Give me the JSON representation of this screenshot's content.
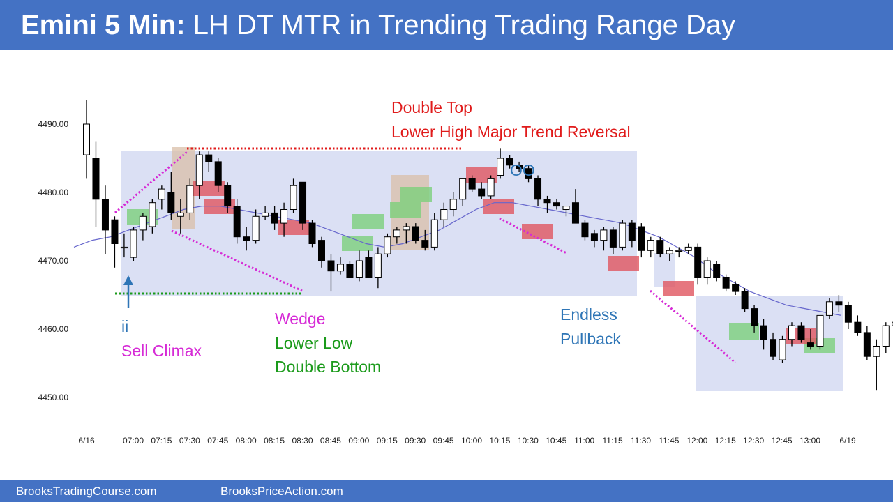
{
  "header": {
    "title_bold": "Emini 5 Min:",
    "title_rest": "LH DT MTR in Trending Trading Range Day"
  },
  "footer": {
    "site1": "BrooksTradingCourse.com",
    "site2": "BrooksPriceAction.com"
  },
  "colors": {
    "header_bg": "#4472c4",
    "bull_bar": "#ffffff",
    "bear_bar": "#000000",
    "ema": "#6666cc",
    "range_box": "#dbe0f4",
    "green_box": "#7ccf7c",
    "red_box": "#e0555f",
    "tan_box": "#d9bfa8",
    "magenta": "#d62ad6",
    "green_text": "#1a9a1a",
    "red_text": "#e01b1b",
    "blue_text": "#2e75b6"
  },
  "annotations": {
    "double_top": "Double Top",
    "lh_mtr": "Lower High Major Trend Reversal",
    "oo": "OO",
    "ii": "ii",
    "sell_climax": "Sell Climax",
    "wedge": "Wedge",
    "lower_low": "Lower Low",
    "double_bottom": "Double Bottom",
    "endless": "Endless",
    "pullback": "Pullback"
  },
  "chart_data": {
    "type": "candlestick",
    "y_ticks": [
      "4450.00",
      "4460.00",
      "4470.00",
      "4480.00",
      "4490.00"
    ],
    "x_ticks": [
      "6/16",
      "07:00",
      "07:15",
      "07:30",
      "07:45",
      "08:00",
      "08:15",
      "08:30",
      "08:45",
      "09:00",
      "09:15",
      "09:30",
      "09:45",
      "10:00",
      "10:15",
      "10:30",
      "10:45",
      "11:00",
      "11:15",
      "11:30",
      "11:45",
      "12:00",
      "12:15",
      "12:30",
      "12:45",
      "13:00",
      "6/19"
    ],
    "ylim": [
      4447,
      4496
    ],
    "grid": false,
    "candles": [
      {
        "o": 4485.5,
        "h": 4493.5,
        "l": 4482.0,
        "c": 4490.0
      },
      {
        "o": 4485.0,
        "h": 4487.5,
        "l": 4475.0,
        "c": 4479.0
      },
      {
        "o": 4479.0,
        "h": 4481.0,
        "l": 4471.0,
        "c": 4474.5
      },
      {
        "o": 4476.0,
        "h": 4476.5,
        "l": 4469.0,
        "c": 4472.5
      },
      {
        "o": 4472.0,
        "h": 4474.0,
        "l": 4470.5,
        "c": 4472.0
      },
      {
        "o": 4470.5,
        "h": 4475.0,
        "l": 4470.0,
        "c": 4474.5
      },
      {
        "o": 4474.5,
        "h": 4477.0,
        "l": 4473.0,
        "c": 4476.5
      },
      {
        "o": 4475.0,
        "h": 4479.0,
        "l": 4474.0,
        "c": 4478.5
      },
      {
        "o": 4479.0,
        "h": 4481.0,
        "l": 4477.5,
        "c": 4480.5
      },
      {
        "o": 4480.0,
        "h": 4483.0,
        "l": 4476.0,
        "c": 4477.0
      },
      {
        "o": 4476.5,
        "h": 4479.0,
        "l": 4474.0,
        "c": 4477.0
      },
      {
        "o": 4477.0,
        "h": 4482.0,
        "l": 4476.0,
        "c": 4481.0
      },
      {
        "o": 4481.0,
        "h": 4486.0,
        "l": 4479.0,
        "c": 4485.5
      },
      {
        "o": 4485.5,
        "h": 4486.0,
        "l": 4483.0,
        "c": 4484.5
      },
      {
        "o": 4484.5,
        "h": 4485.0,
        "l": 4480.0,
        "c": 4481.0
      },
      {
        "o": 4481.0,
        "h": 4481.5,
        "l": 4477.0,
        "c": 4478.0
      },
      {
        "o": 4478.0,
        "h": 4479.0,
        "l": 4472.5,
        "c": 4473.5
      },
      {
        "o": 4473.5,
        "h": 4475.0,
        "l": 4471.5,
        "c": 4473.0
      },
      {
        "o": 4473.0,
        "h": 4477.5,
        "l": 4472.5,
        "c": 4476.5
      },
      {
        "o": 4476.5,
        "h": 4478.0,
        "l": 4476.0,
        "c": 4477.0
      },
      {
        "o": 4477.0,
        "h": 4478.0,
        "l": 4474.5,
        "c": 4475.5
      },
      {
        "o": 4475.5,
        "h": 4478.5,
        "l": 4473.5,
        "c": 4477.5
      },
      {
        "o": 4477.5,
        "h": 4482.0,
        "l": 4477.0,
        "c": 4481.0
      },
      {
        "o": 4481.5,
        "h": 4481.5,
        "l": 4474.5,
        "c": 4475.5
      },
      {
        "o": 4475.5,
        "h": 4476.0,
        "l": 4472.0,
        "c": 4472.5
      },
      {
        "o": 4473.0,
        "h": 4473.5,
        "l": 4469.0,
        "c": 4470.0
      },
      {
        "o": 4470.0,
        "h": 4471.0,
        "l": 4465.5,
        "c": 4468.5
      },
      {
        "o": 4468.5,
        "h": 4470.5,
        "l": 4468.0,
        "c": 4469.5
      },
      {
        "o": 4469.5,
        "h": 4470.0,
        "l": 4467.5,
        "c": 4467.5
      },
      {
        "o": 4467.5,
        "h": 4471.5,
        "l": 4467.0,
        "c": 4470.0
      },
      {
        "o": 4470.5,
        "h": 4471.5,
        "l": 4467.5,
        "c": 4467.5
      },
      {
        "o": 4467.5,
        "h": 4472.0,
        "l": 4466.0,
        "c": 4471.0
      },
      {
        "o": 4471.0,
        "h": 4474.0,
        "l": 4470.5,
        "c": 4473.5
      },
      {
        "o": 4473.5,
        "h": 4475.0,
        "l": 4472.5,
        "c": 4474.5
      },
      {
        "o": 4474.5,
        "h": 4475.5,
        "l": 4472.5,
        "c": 4475.0
      },
      {
        "o": 4475.0,
        "h": 4475.5,
        "l": 4472.5,
        "c": 4473.0
      },
      {
        "o": 4473.0,
        "h": 4474.5,
        "l": 4471.5,
        "c": 4472.0
      },
      {
        "o": 4472.0,
        "h": 4477.0,
        "l": 4471.5,
        "c": 4476.0
      },
      {
        "o": 4476.0,
        "h": 4478.5,
        "l": 4475.0,
        "c": 4477.5
      },
      {
        "o": 4477.5,
        "h": 4480.0,
        "l": 4476.5,
        "c": 4479.0
      },
      {
        "o": 4479.0,
        "h": 4482.0,
        "l": 4478.0,
        "c": 4482.0
      },
      {
        "o": 4482.0,
        "h": 4482.5,
        "l": 4480.0,
        "c": 4480.5
      },
      {
        "o": 4480.5,
        "h": 4481.5,
        "l": 4479.0,
        "c": 4479.5
      },
      {
        "o": 4479.5,
        "h": 4482.5,
        "l": 4479.0,
        "c": 4482.0
      },
      {
        "o": 4482.5,
        "h": 4486.5,
        "l": 4482.0,
        "c": 4485.0
      },
      {
        "o": 4485.0,
        "h": 4485.5,
        "l": 4483.5,
        "c": 4484.0
      },
      {
        "o": 4484.0,
        "h": 4484.5,
        "l": 4483.0,
        "c": 4483.5
      },
      {
        "o": 4483.5,
        "h": 4484.0,
        "l": 4481.5,
        "c": 4482.0
      },
      {
        "o": 4482.0,
        "h": 4482.5,
        "l": 4478.0,
        "c": 4479.0
      },
      {
        "o": 4479.0,
        "h": 4479.5,
        "l": 4477.0,
        "c": 4478.5
      },
      {
        "o": 4478.5,
        "h": 4479.0,
        "l": 4477.5,
        "c": 4478.0
      },
      {
        "o": 4477.5,
        "h": 4478.0,
        "l": 4476.5,
        "c": 4478.0
      },
      {
        "o": 4478.5,
        "h": 4480.5,
        "l": 4475.5,
        "c": 4475.5
      },
      {
        "o": 4475.5,
        "h": 4476.0,
        "l": 4473.0,
        "c": 4473.5
      },
      {
        "o": 4474.0,
        "h": 4474.5,
        "l": 4472.0,
        "c": 4473.0
      },
      {
        "o": 4473.0,
        "h": 4475.0,
        "l": 4471.5,
        "c": 4474.5
      },
      {
        "o": 4474.5,
        "h": 4475.0,
        "l": 4471.0,
        "c": 4472.0
      },
      {
        "o": 4472.0,
        "h": 4476.0,
        "l": 4471.5,
        "c": 4475.5
      },
      {
        "o": 4475.5,
        "h": 4476.0,
        "l": 4472.0,
        "c": 4473.0
      },
      {
        "o": 4475.0,
        "h": 4475.5,
        "l": 4470.5,
        "c": 4471.5
      },
      {
        "o": 4471.5,
        "h": 4473.5,
        "l": 4470.5,
        "c": 4473.0
      },
      {
        "o": 4473.0,
        "h": 4473.5,
        "l": 4470.5,
        "c": 4471.0
      },
      {
        "o": 4471.0,
        "h": 4472.0,
        "l": 4470.0,
        "c": 4471.5
      },
      {
        "o": 4471.5,
        "h": 4472.0,
        "l": 4470.5,
        "c": 4471.5
      },
      {
        "o": 4471.5,
        "h": 4472.5,
        "l": 4471.0,
        "c": 4472.0
      },
      {
        "o": 4472.0,
        "h": 4472.5,
        "l": 4466.5,
        "c": 4467.5
      },
      {
        "o": 4467.5,
        "h": 4470.5,
        "l": 4466.5,
        "c": 4470.0
      },
      {
        "o": 4469.5,
        "h": 4470.0,
        "l": 4467.0,
        "c": 4467.5
      },
      {
        "o": 4467.5,
        "h": 4468.0,
        "l": 4465.5,
        "c": 4466.0
      },
      {
        "o": 4466.5,
        "h": 4467.0,
        "l": 4465.0,
        "c": 4465.5
      },
      {
        "o": 4465.5,
        "h": 4466.0,
        "l": 4462.5,
        "c": 4463.0
      },
      {
        "o": 4463.0,
        "h": 4463.5,
        "l": 4459.5,
        "c": 4460.5
      },
      {
        "o": 4460.5,
        "h": 4461.5,
        "l": 4457.0,
        "c": 4458.5
      },
      {
        "o": 4458.5,
        "h": 4459.5,
        "l": 4455.5,
        "c": 4456.0
      },
      {
        "o": 4455.5,
        "h": 4459.0,
        "l": 4455.0,
        "c": 4458.5
      },
      {
        "o": 4458.5,
        "h": 4461.0,
        "l": 4457.5,
        "c": 4460.5
      },
      {
        "o": 4460.5,
        "h": 4461.0,
        "l": 4458.0,
        "c": 4458.5
      },
      {
        "o": 4458.0,
        "h": 4460.0,
        "l": 4457.0,
        "c": 4457.5
      },
      {
        "o": 4457.5,
        "h": 4462.0,
        "l": 4457.0,
        "c": 4462.0
      },
      {
        "o": 4462.0,
        "h": 4464.5,
        "l": 4461.5,
        "c": 4464.0
      },
      {
        "o": 4464.0,
        "h": 4465.0,
        "l": 4462.5,
        "c": 4463.5
      },
      {
        "o": 4463.5,
        "h": 4464.0,
        "l": 4460.0,
        "c": 4461.0
      },
      {
        "o": 4461.0,
        "h": 4462.0,
        "l": 4459.0,
        "c": 4459.5
      },
      {
        "o": 4459.5,
        "h": 4460.5,
        "l": 4455.5,
        "c": 4456.0
      },
      {
        "o": 4456.0,
        "h": 4458.5,
        "l": 4451.0,
        "c": 4457.5
      },
      {
        "o": 4457.5,
        "h": 4461.0,
        "l": 4456.5,
        "c": 4460.5
      },
      {
        "o": 4460.5,
        "h": 4461.5,
        "l": 4459.5,
        "c": 4461.0
      },
      {
        "o": 4461.5,
        "h": 4462.0,
        "l": 4458.0,
        "c": 4458.5
      }
    ],
    "ema": [
      4472.0,
      4473.0,
      4473.5,
      4474.5,
      4475.5,
      4476.5,
      4477.5,
      4478.0,
      4478.0,
      4477.5,
      4477.0,
      4476.5,
      4476.0,
      4475.5,
      4474.5,
      4473.5,
      4472.5,
      4472.0,
      4472.5,
      4473.5,
      4474.5,
      4476.0,
      4477.5,
      4478.5,
      4478.5,
      4478.0,
      4477.5,
      4477.0,
      4476.5,
      4476.0,
      4475.5,
      4474.5,
      4473.5,
      4472.0,
      4470.5,
      4468.5,
      4467.0,
      4465.5,
      4464.5,
      4463.5,
      4463.0,
      4462.5,
      4462.0
    ]
  }
}
